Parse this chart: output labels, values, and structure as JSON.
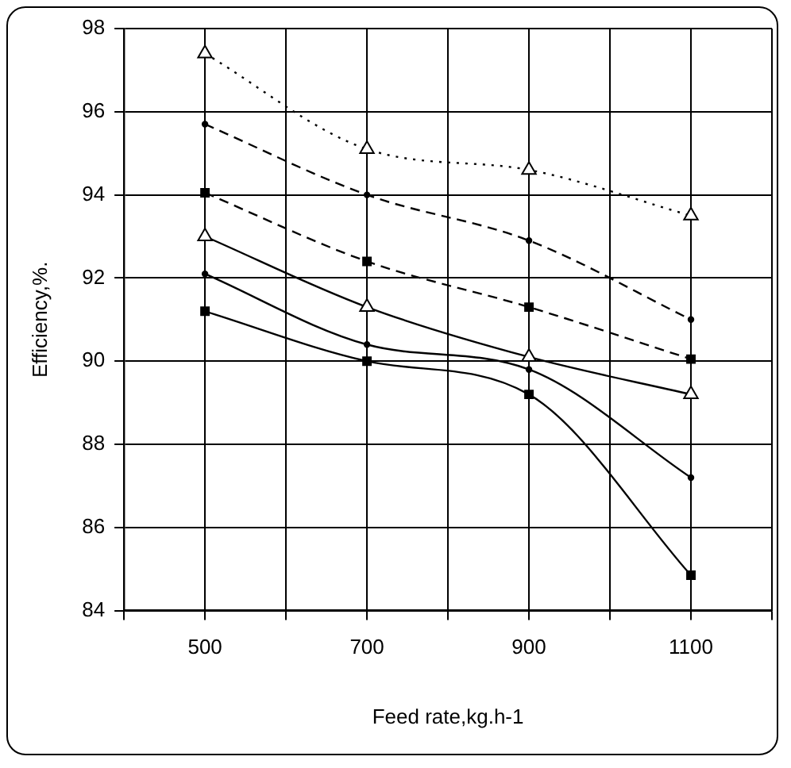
{
  "chart_data": {
    "type": "line",
    "xlabel": "Feed rate,kg.h-1",
    "ylabel": "Efficiency,%.",
    "x": [
      500,
      700,
      900,
      1100
    ],
    "xlim": [
      400,
      1200
    ],
    "xticks": [
      {
        "value": 400,
        "label": null
      },
      500,
      {
        "value": 600,
        "label": null
      },
      700,
      {
        "value": 800,
        "label": null
      },
      900,
      {
        "value": 1000,
        "label": null
      },
      1100,
      {
        "value": 1200,
        "label": null
      }
    ],
    "ylim": [
      84,
      98
    ],
    "yticks": [
      84,
      86,
      88,
      90,
      92,
      94,
      96,
      98
    ],
    "grid": true,
    "legend": false,
    "series": [
      {
        "color": "#000000",
        "marker": "triangle",
        "line_style": "dotted",
        "values": [
          97.4,
          95.1,
          94.6,
          93.5
        ]
      },
      {
        "color": "#000000",
        "marker": "circle",
        "line_style": "dashed",
        "values": [
          95.7,
          94.0,
          92.9,
          91.0
        ]
      },
      {
        "color": "#000000",
        "marker": "square",
        "line_style": "dashed",
        "values": [
          94.05,
          92.4,
          91.3,
          90.05
        ]
      },
      {
        "color": "#000000",
        "marker": "triangle",
        "line_style": "solid",
        "values": [
          93.0,
          91.3,
          90.1,
          89.2
        ]
      },
      {
        "color": "#000000",
        "marker": "circle",
        "line_style": "solid",
        "values": [
          92.1,
          90.4,
          89.8,
          87.2
        ]
      },
      {
        "color": "#000000",
        "marker": "square",
        "line_style": "solid",
        "values": [
          91.2,
          90.0,
          89.2,
          84.85
        ]
      }
    ]
  }
}
